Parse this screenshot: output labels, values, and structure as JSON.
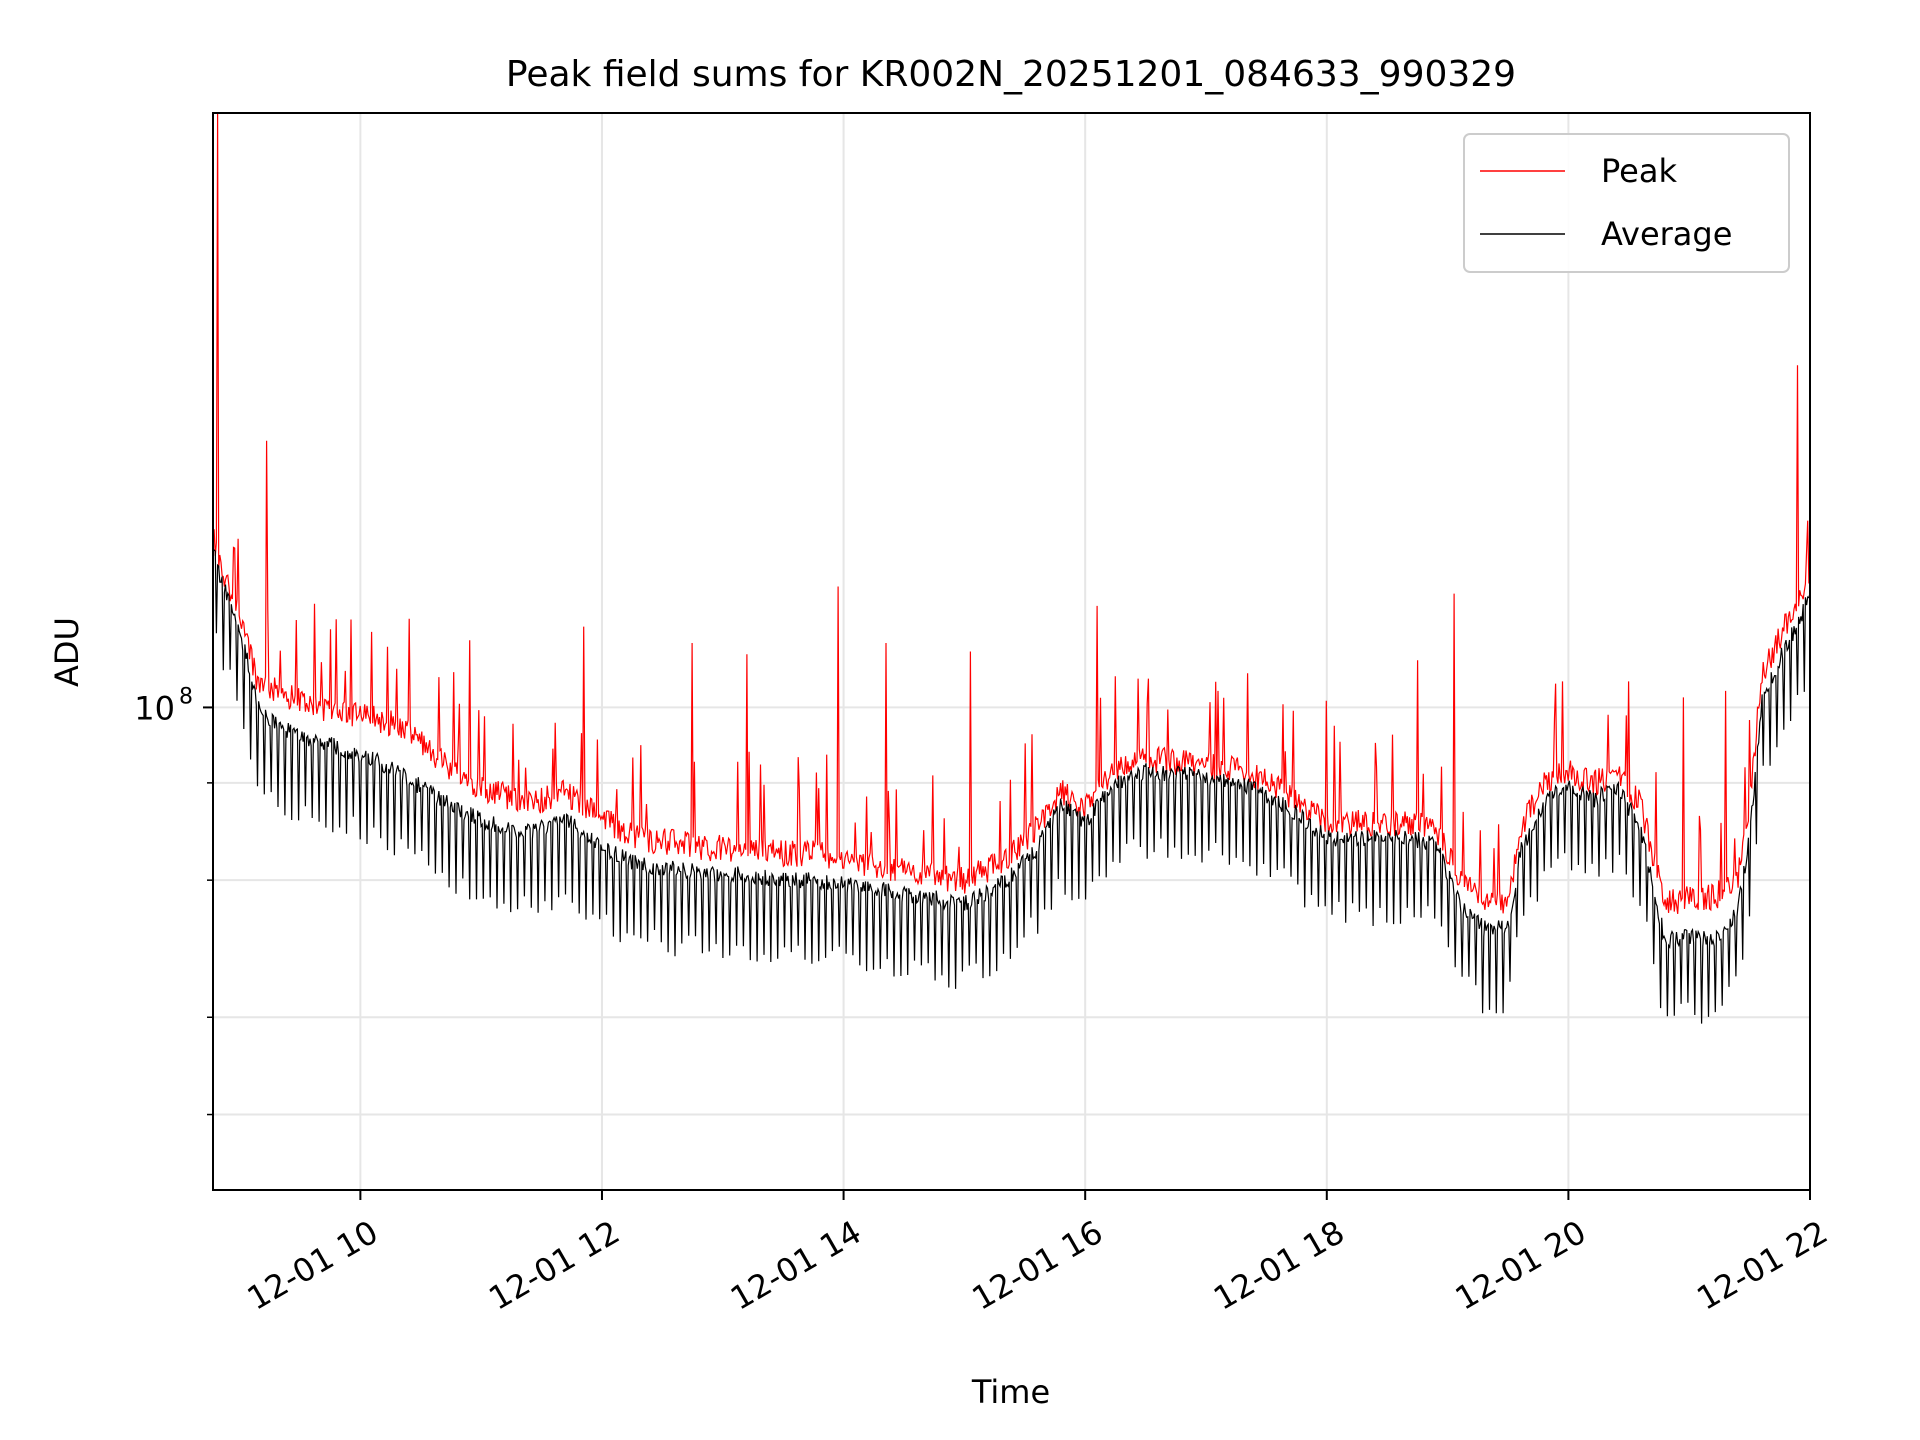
{
  "chart_data": {
    "type": "line",
    "title": "Peak field sums for KR002N_20251201_084633_990329",
    "xlabel": "Time",
    "ylabel": "ADU",
    "yscale": "log",
    "ylim": [
      24000000,
      580000000
    ],
    "xlim": [
      8.78,
      22.0
    ],
    "x_ticks": [
      {
        "value": 10,
        "label": "12-01 10"
      },
      {
        "value": 12,
        "label": "12-01 12"
      },
      {
        "value": 14,
        "label": "12-01 14"
      },
      {
        "value": 16,
        "label": "12-01 16"
      },
      {
        "value": 18,
        "label": "12-01 18"
      },
      {
        "value": 20,
        "label": "12-01 20"
      },
      {
        "value": 22,
        "label": "12-01 22"
      }
    ],
    "y_major_ticks": [
      {
        "value": 100000000,
        "base": "10",
        "exp": "8"
      }
    ],
    "y_minor_ticks": [
      30000000,
      40000000,
      60000000,
      80000000
    ],
    "grid": true,
    "legend": {
      "position": "top-right",
      "entries": [
        {
          "name": "Peak",
          "color": "#ff0000"
        },
        {
          "name": "Average",
          "color": "#000000"
        }
      ]
    },
    "series": [
      {
        "name": "Peak",
        "color": "#ff0000",
        "x": [
          8.78,
          8.85,
          8.95,
          9.05,
          9.15,
          9.3,
          9.5,
          9.7,
          9.9,
          10.1,
          10.3,
          10.5,
          10.8,
          11.1,
          11.4,
          11.7,
          12.0,
          12.3,
          12.6,
          12.9,
          13.2,
          13.5,
          13.8,
          14.1,
          14.4,
          14.7,
          15.0,
          15.2,
          15.4,
          15.6,
          15.8,
          16.0,
          16.2,
          16.5,
          16.8,
          17.1,
          17.4,
          17.7,
          18.0,
          18.3,
          18.6,
          18.9,
          19.1,
          19.3,
          19.5,
          19.6,
          19.8,
          20.0,
          20.2,
          20.4,
          20.6,
          20.8,
          21.0,
          21.2,
          21.4,
          21.5,
          21.6,
          21.8,
          21.9,
          22.0
        ],
        "values": [
          165000000,
          150000000,
          138000000,
          125000000,
          108000000,
          105000000,
          102000000,
          100000000,
          98000000,
          97000000,
          95000000,
          90000000,
          82000000,
          78000000,
          75000000,
          78000000,
          72000000,
          68000000,
          67000000,
          66000000,
          66000000,
          65000000,
          65000000,
          63000000,
          62000000,
          61000000,
          60000000,
          62000000,
          65000000,
          70000000,
          78000000,
          74000000,
          82000000,
          86000000,
          85000000,
          84000000,
          82000000,
          77000000,
          71000000,
          71000000,
          71000000,
          70000000,
          60000000,
          56000000,
          56000000,
          70000000,
          80000000,
          83000000,
          80000000,
          82000000,
          75000000,
          56000000,
          57000000,
          57000000,
          60000000,
          75000000,
          110000000,
          128000000,
          135000000,
          145000000
        ],
        "spikes": [
          {
            "x": 8.82,
            "value": 580000000
          },
          {
            "x": 9.22,
            "value": 220000000
          },
          {
            "x": 9.75,
            "value": 126000000
          },
          {
            "x": 10.4,
            "value": 130000000
          },
          {
            "x": 10.9,
            "value": 122000000
          },
          {
            "x": 11.85,
            "value": 127000000
          },
          {
            "x": 12.75,
            "value": 121000000
          },
          {
            "x": 13.2,
            "value": 117000000
          },
          {
            "x": 13.95,
            "value": 143000000
          },
          {
            "x": 14.35,
            "value": 121000000
          },
          {
            "x": 15.05,
            "value": 118000000
          },
          {
            "x": 16.1,
            "value": 135000000
          },
          {
            "x": 17.1,
            "value": 105000000
          },
          {
            "x": 18.0,
            "value": 102000000
          },
          {
            "x": 18.75,
            "value": 115000000
          },
          {
            "x": 19.05,
            "value": 140000000
          },
          {
            "x": 19.95,
            "value": 108000000
          },
          {
            "x": 20.5,
            "value": 108000000
          },
          {
            "x": 20.95,
            "value": 103000000
          },
          {
            "x": 21.3,
            "value": 105000000
          },
          {
            "x": 21.9,
            "value": 275000000
          }
        ]
      },
      {
        "name": "Average",
        "color": "#000000",
        "x": [
          8.78,
          8.85,
          8.95,
          9.05,
          9.15,
          9.3,
          9.5,
          9.7,
          9.9,
          10.1,
          10.3,
          10.5,
          10.8,
          11.1,
          11.4,
          11.7,
          12.0,
          12.3,
          12.6,
          12.9,
          13.2,
          13.5,
          13.8,
          14.1,
          14.4,
          14.7,
          15.0,
          15.2,
          15.4,
          15.6,
          15.8,
          16.0,
          16.2,
          16.5,
          16.8,
          17.1,
          17.4,
          17.7,
          18.0,
          18.3,
          18.6,
          18.9,
          19.1,
          19.3,
          19.5,
          19.6,
          19.8,
          20.0,
          20.2,
          20.4,
          20.6,
          20.8,
          21.0,
          21.2,
          21.4,
          21.5,
          21.6,
          21.8,
          21.9,
          22.0
        ],
        "values": [
          160000000,
          145000000,
          132000000,
          118000000,
          100000000,
          95000000,
          92000000,
          90000000,
          88000000,
          86000000,
          83000000,
          79000000,
          74000000,
          71000000,
          69000000,
          72000000,
          66000000,
          63000000,
          62000000,
          61000000,
          61000000,
          60000000,
          60000000,
          59000000,
          58000000,
          57000000,
          56000000,
          58000000,
          61000000,
          66000000,
          75000000,
          71000000,
          79000000,
          83000000,
          82000000,
          81000000,
          79000000,
          74000000,
          68000000,
          68000000,
          68000000,
          67000000,
          56000000,
          52000000,
          52000000,
          65000000,
          76000000,
          80000000,
          76000000,
          79000000,
          70000000,
          50000000,
          51000000,
          50000000,
          55000000,
          68000000,
          102000000,
          120000000,
          128000000,
          140000000
        ],
        "dip_fraction": 0.83
      }
    ]
  }
}
